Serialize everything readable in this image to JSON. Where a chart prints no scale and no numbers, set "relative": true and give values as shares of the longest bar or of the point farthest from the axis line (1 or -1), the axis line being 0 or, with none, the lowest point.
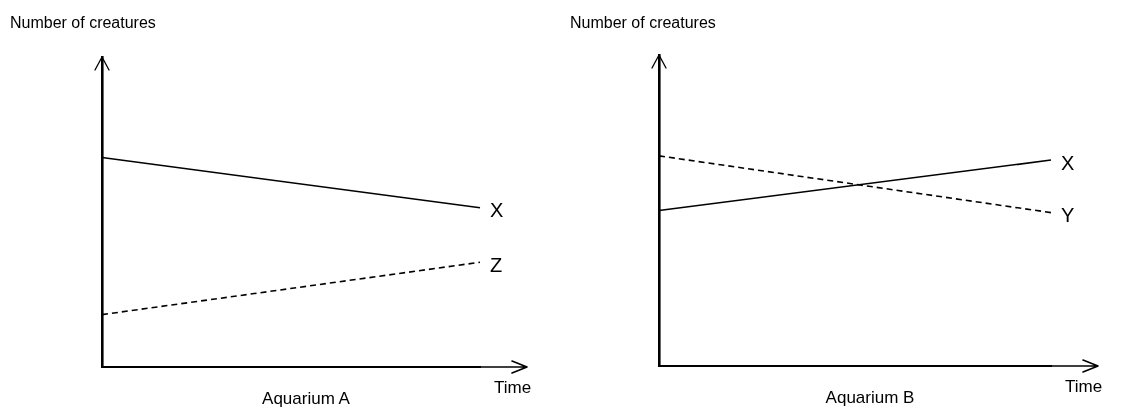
{
  "chart_data": [
    {
      "type": "line",
      "title": "Aquarium A",
      "xlabel": "Time",
      "ylabel": "Number of creatures",
      "categories": [
        null,
        null
      ],
      "relative": true,
      "legend": false,
      "grid": false,
      "tick_labels": false,
      "marker": "none",
      "series": [
        {
          "name": "X",
          "color": "#000000",
          "values": [
            1,
            0.76
          ],
          "line_style": "solid"
        },
        {
          "name": "Z",
          "color": "#000000",
          "values": [
            0.25,
            0.5
          ],
          "line_style": "dashed"
        }
      ]
    },
    {
      "type": "line",
      "title": "Aquarium B",
      "xlabel": "Time",
      "ylabel": "Number of creatures",
      "categories": [
        null,
        null
      ],
      "relative": true,
      "legend": false,
      "grid": false,
      "tick_labels": false,
      "marker": "none",
      "series": [
        {
          "name": "X",
          "color": "#000000",
          "values": [
            0.74,
            0.98
          ],
          "line_style": "solid"
        },
        {
          "name": "Y",
          "color": "#000000",
          "values": [
            1,
            0.73
          ],
          "line_style": "dashed"
        }
      ]
    }
  ]
}
